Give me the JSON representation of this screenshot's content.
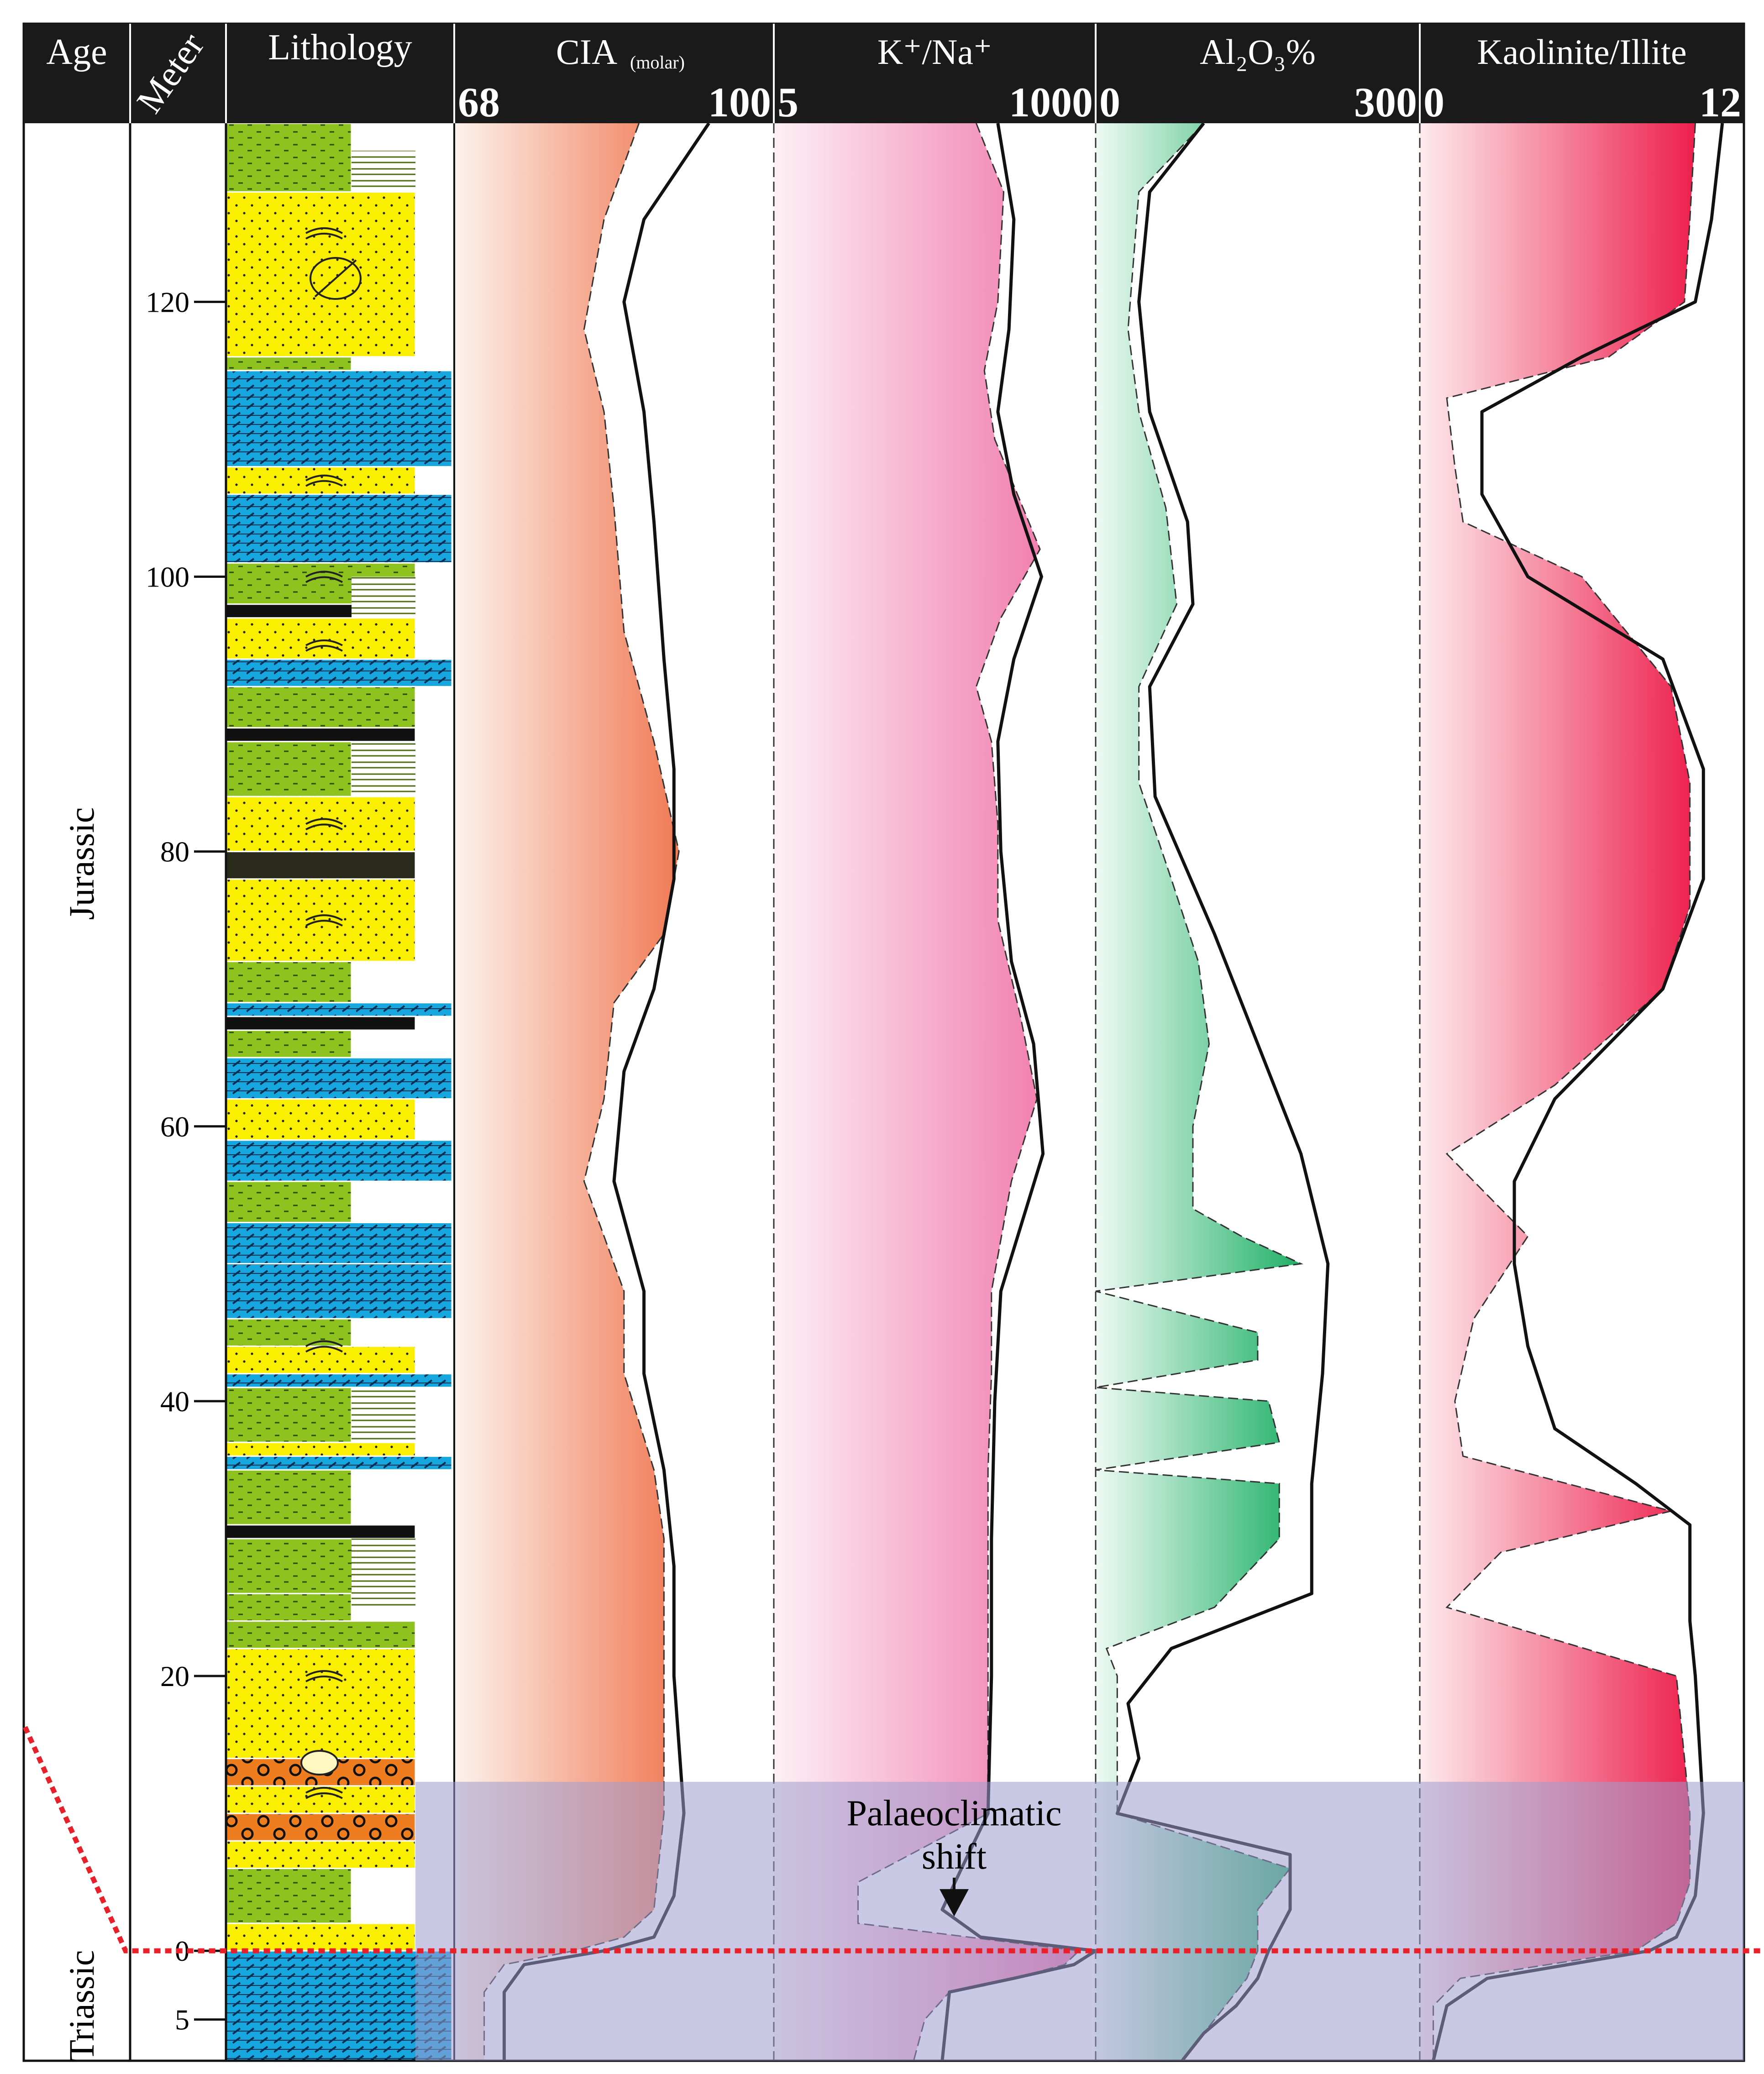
{
  "chart_data": {
    "type": "stratigraphic_log",
    "headers": {
      "age": "Age",
      "meter": "Meter",
      "lithology": "Lithology"
    },
    "meter_axis": {
      "range": [
        -8,
        133
      ],
      "ticks": [
        {
          "value": 120,
          "label": "120"
        },
        {
          "value": 100,
          "label": "100"
        },
        {
          "value": 80,
          "label": "80"
        },
        {
          "value": 60,
          "label": "60"
        },
        {
          "value": 40,
          "label": "40"
        },
        {
          "value": 20,
          "label": "20"
        },
        {
          "value": 0,
          "label": "0"
        },
        {
          "value": -5,
          "label": "5"
        }
      ]
    },
    "ages": [
      {
        "name": "Jurassic",
        "from": 0,
        "to": 133
      },
      {
        "name": "Triassic",
        "from": -8,
        "to": 0
      }
    ],
    "boundary_meter": 0,
    "shift_zone_top_meter": 12.3,
    "annotation": {
      "line1": "Palaeoclimatic",
      "line2": "shift",
      "meter": 2.5
    },
    "panels": [
      {
        "key": "cia",
        "name_main": "CIA",
        "name_sub": "(molar)",
        "min_label": "68",
        "max_label": "100",
        "min": 68,
        "max": 100,
        "color_start": "#fdf2ec",
        "color_end": "#f07a55",
        "fill_profile": [
          [
            133,
            86.5
          ],
          [
            126,
            83
          ],
          [
            118,
            81
          ],
          [
            112,
            83
          ],
          [
            105,
            84
          ],
          [
            96,
            85
          ],
          [
            88,
            88
          ],
          [
            80,
            90.5
          ],
          [
            74,
            89
          ],
          [
            69,
            84
          ],
          [
            62,
            83
          ],
          [
            56,
            81
          ],
          [
            48,
            85
          ],
          [
            42,
            85
          ],
          [
            35,
            88
          ],
          [
            30,
            89
          ],
          [
            20,
            89
          ],
          [
            10,
            89
          ],
          [
            3,
            88
          ],
          [
            1,
            85
          ],
          [
            0,
            80
          ],
          [
            -1,
            73
          ],
          [
            -3,
            71
          ],
          [
            -8,
            71
          ]
        ],
        "curve_profile": [
          [
            133,
            93.5
          ],
          [
            126,
            87
          ],
          [
            120,
            85
          ],
          [
            112,
            87
          ],
          [
            104,
            88
          ],
          [
            94,
            89
          ],
          [
            86,
            90
          ],
          [
            78,
            90
          ],
          [
            70,
            88
          ],
          [
            64,
            85
          ],
          [
            56,
            84
          ],
          [
            48,
            87
          ],
          [
            42,
            87
          ],
          [
            35,
            89
          ],
          [
            28,
            90
          ],
          [
            20,
            90
          ],
          [
            10,
            91
          ],
          [
            4,
            90
          ],
          [
            1,
            88
          ],
          [
            0,
            83
          ],
          [
            -1,
            75
          ],
          [
            -3,
            73
          ],
          [
            -8,
            73
          ]
        ]
      },
      {
        "key": "kna",
        "name_main": "K⁺/Na⁺",
        "min_label": "5",
        "max_label": "1000",
        "min": 5,
        "max": 1000,
        "color_start": "#fdf0f5",
        "color_end": "#ef6fa5",
        "fill_profile": [
          [
            133,
            140
          ],
          [
            128,
            220
          ],
          [
            120,
            200
          ],
          [
            115,
            160
          ],
          [
            110,
            190
          ],
          [
            102,
            400
          ],
          [
            97,
            210
          ],
          [
            92,
            140
          ],
          [
            88,
            180
          ],
          [
            82,
            200
          ],
          [
            75,
            200
          ],
          [
            68,
            290
          ],
          [
            62,
            380
          ],
          [
            56,
            250
          ],
          [
            48,
            180
          ],
          [
            42,
            180
          ],
          [
            35,
            170
          ],
          [
            25,
            170
          ],
          [
            15,
            170
          ],
          [
            10,
            170
          ],
          [
            5,
            20
          ],
          [
            2,
            20
          ],
          [
            0,
            760
          ],
          [
            -1,
            600
          ],
          [
            -2,
            260
          ],
          [
            -3,
            90
          ],
          [
            -5,
            60
          ],
          [
            -8,
            50
          ]
        ],
        "curve_profile": [
          [
            133,
            200
          ],
          [
            126,
            260
          ],
          [
            118,
            240
          ],
          [
            112,
            200
          ],
          [
            106,
            260
          ],
          [
            100,
            410
          ],
          [
            94,
            260
          ],
          [
            88,
            200
          ],
          [
            80,
            210
          ],
          [
            72,
            250
          ],
          [
            66,
            360
          ],
          [
            58,
            420
          ],
          [
            48,
            210
          ],
          [
            40,
            190
          ],
          [
            30,
            180
          ],
          [
            20,
            180
          ],
          [
            10,
            170
          ],
          [
            6,
            110
          ],
          [
            3,
            80
          ],
          [
            1,
            150
          ],
          [
            0,
            1000
          ],
          [
            -1,
            700
          ],
          [
            -2,
            260
          ],
          [
            -3,
            90
          ],
          [
            -8,
            80
          ]
        ]
      },
      {
        "key": "al2o3",
        "name_main": "Al₂O₃%",
        "min_label": "0",
        "max_label": "300",
        "min": 0,
        "max": 300,
        "color_start": "#eefaf4",
        "color_end": "#1fb066",
        "fill_profile": [
          [
            133,
            100
          ],
          [
            128,
            40
          ],
          [
            118,
            30
          ],
          [
            112,
            40
          ],
          [
            105,
            65
          ],
          [
            98,
            75
          ],
          [
            92,
            40
          ],
          [
            85,
            40
          ],
          [
            78,
            70
          ],
          [
            72,
            95
          ],
          [
            66,
            105
          ],
          [
            60,
            90
          ],
          [
            54,
            90
          ],
          [
            52,
            135
          ],
          [
            50,
            190
          ],
          [
            48,
            0
          ],
          [
            45,
            150
          ],
          [
            43,
            150
          ],
          [
            41,
            0
          ],
          [
            40,
            160
          ],
          [
            37,
            170
          ],
          [
            35,
            0
          ],
          [
            34,
            170
          ],
          [
            30,
            170
          ],
          [
            25,
            110
          ],
          [
            22,
            10
          ],
          [
            20,
            20
          ],
          [
            10,
            20
          ],
          [
            6,
            180
          ],
          [
            3,
            150
          ],
          [
            0,
            150
          ],
          [
            -2,
            140
          ],
          [
            -4,
            120
          ],
          [
            -6,
            100
          ],
          [
            -8,
            80
          ]
        ],
        "curve_profile": [
          [
            133,
            100
          ],
          [
            128,
            50
          ],
          [
            120,
            40
          ],
          [
            112,
            50
          ],
          [
            104,
            85
          ],
          [
            98,
            90
          ],
          [
            92,
            50
          ],
          [
            84,
            55
          ],
          [
            74,
            110
          ],
          [
            66,
            150
          ],
          [
            58,
            190
          ],
          [
            50,
            215
          ],
          [
            42,
            210
          ],
          [
            34,
            200
          ],
          [
            26,
            200
          ],
          [
            22,
            70
          ],
          [
            18,
            30
          ],
          [
            14,
            40
          ],
          [
            10,
            20
          ],
          [
            7,
            180
          ],
          [
            3,
            180
          ],
          [
            0,
            160
          ],
          [
            -2,
            150
          ],
          [
            -4,
            130
          ],
          [
            -6,
            100
          ],
          [
            -8,
            80
          ]
        ]
      },
      {
        "key": "kaol",
        "name_main": "Kaolinite/Illite",
        "min_label": "0",
        "max_label": "12",
        "min": 0,
        "max": 12,
        "color_start": "#fdebee",
        "color_end": "#ed1f4c",
        "fill_profile": [
          [
            133,
            10.2
          ],
          [
            126,
            10
          ],
          [
            120,
            9.8
          ],
          [
            116,
            7
          ],
          [
            113,
            1
          ],
          [
            108,
            1.3
          ],
          [
            104,
            1.6
          ],
          [
            100,
            6
          ],
          [
            92,
            9.3
          ],
          [
            85,
            10
          ],
          [
            76,
            10
          ],
          [
            70,
            9
          ],
          [
            63,
            5
          ],
          [
            58,
            1
          ],
          [
            52,
            4
          ],
          [
            46,
            2
          ],
          [
            40,
            1.3
          ],
          [
            36,
            1.6
          ],
          [
            32,
            9.3
          ],
          [
            29,
            3
          ],
          [
            25,
            1
          ],
          [
            20,
            9.5
          ],
          [
            10,
            10
          ],
          [
            5,
            10
          ],
          [
            2,
            9.5
          ],
          [
            0,
            8
          ],
          [
            -2,
            1.5
          ],
          [
            -4,
            0.5
          ],
          [
            -8,
            0.5
          ]
        ],
        "curve_profile": [
          [
            133,
            11.2
          ],
          [
            126,
            10.8
          ],
          [
            120,
            10.2
          ],
          [
            116,
            6
          ],
          [
            112,
            2.3
          ],
          [
            106,
            2.3
          ],
          [
            100,
            4
          ],
          [
            94,
            9
          ],
          [
            86,
            10.5
          ],
          [
            78,
            10.5
          ],
          [
            70,
            9
          ],
          [
            62,
            5
          ],
          [
            56,
            3.5
          ],
          [
            50,
            3.5
          ],
          [
            44,
            4
          ],
          [
            38,
            5
          ],
          [
            34,
            8
          ],
          [
            31,
            10
          ],
          [
            28,
            10
          ],
          [
            24,
            10
          ],
          [
            20,
            10.2
          ],
          [
            10,
            10.5
          ],
          [
            4,
            10.2
          ],
          [
            1,
            9.5
          ],
          [
            0,
            8.5
          ],
          [
            -2,
            2.5
          ],
          [
            -4,
            1
          ],
          [
            -8,
            0.5
          ]
        ]
      }
    ]
  }
}
